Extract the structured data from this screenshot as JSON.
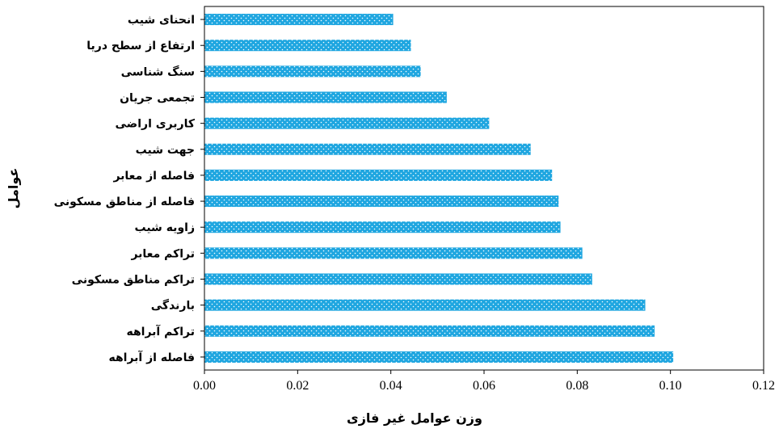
{
  "chart_data": {
    "type": "bar",
    "orientation": "horizontal",
    "xlabel": "وزن عوامل غیر فازی",
    "ylabel": "عوامل",
    "xlim": [
      0,
      0.12
    ],
    "xticks": [
      "0.00",
      "0.02",
      "0.04",
      "0.06",
      "0.08",
      "0.10",
      "0.12"
    ],
    "grid": false,
    "bar_color": "#1fa6e0",
    "categories": [
      "انحنای شیب",
      "ارتفاع از سطح دریا",
      "سنگ شناسی",
      "تجمعی جریان",
      "کاربری اراضی",
      "جهت شیب",
      "فاصله از معابر",
      "فاصله از مناطق مسکونی",
      "زاویه شیب",
      "تراکم معابر",
      "تراکم مناطق مسکونی",
      "بارندگی",
      "تراکم آبراهه",
      "فاصله از آبراهه"
    ],
    "values": [
      0.0405,
      0.0443,
      0.0464,
      0.052,
      0.0611,
      0.07,
      0.0746,
      0.076,
      0.0764,
      0.0811,
      0.0832,
      0.0946,
      0.0966,
      0.1006
    ]
  }
}
